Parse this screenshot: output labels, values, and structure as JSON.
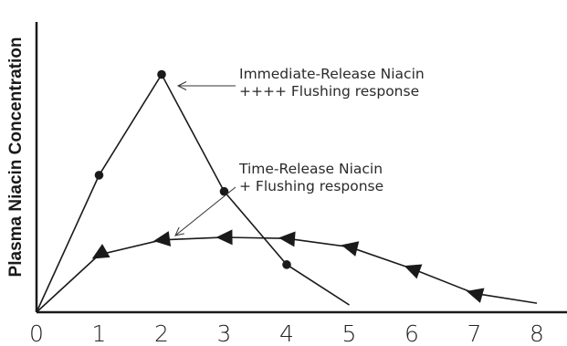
{
  "chart_data": {
    "type": "line",
    "title": "",
    "xlabel": "",
    "ylabel": "Plasma Niacin Concentration",
    "x_ticks": [
      "0",
      "1",
      "2",
      "3",
      "4",
      "5",
      "6",
      "7",
      "8"
    ],
    "xlim": [
      0,
      9
    ],
    "ylim": [
      0,
      1
    ],
    "grid": false,
    "series": [
      {
        "marker": "circle",
        "x": [
          0,
          1,
          2,
          3,
          4,
          5
        ],
        "y": [
          0,
          0.472,
          0.819,
          0.416,
          0.164,
          0.025
        ],
        "show_marker": [
          false,
          true,
          true,
          true,
          true,
          false
        ]
      },
      {
        "marker": "triangle-left",
        "x": [
          0,
          1,
          2,
          3,
          4,
          5,
          6,
          7,
          8
        ],
        "y": [
          0,
          0.198,
          0.249,
          0.258,
          0.254,
          0.225,
          0.15,
          0.065,
          0.031
        ],
        "show_marker": [
          false,
          true,
          true,
          true,
          true,
          true,
          true,
          true,
          false
        ]
      }
    ],
    "annotations": [
      {
        "lines": [
          "Immediate-Release Niacin",
          "++++ Flushing response"
        ],
        "points_to": {
          "x": 2,
          "y": 0.819
        }
      },
      {
        "lines": [
          "Time-Release Niacin",
          "+ Flushing response"
        ],
        "points_to": {
          "x": 2.2,
          "y": 0.3
        }
      }
    ]
  }
}
